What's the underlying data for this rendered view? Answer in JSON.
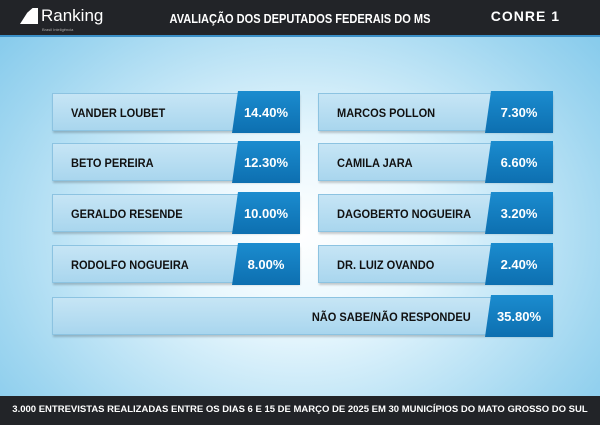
{
  "header": {
    "logo": "Ranking",
    "logo_sub": "Brasil Inteligência",
    "title": "AVALIAÇÃO DOS DEPUTADOS FEDERAIS DO MS",
    "partner": "CONRE 1"
  },
  "left": [
    {
      "name": "VANDER LOUBET",
      "value": "14.40%"
    },
    {
      "name": "BETO PEREIRA",
      "value": "12.30%"
    },
    {
      "name": "GERALDO RESENDE",
      "value": "10.00%"
    },
    {
      "name": "RODOLFO NOGUEIRA",
      "value": "8.00%"
    }
  ],
  "right": [
    {
      "name": "MARCOS POLLON",
      "value": "7.30%"
    },
    {
      "name": "CAMILA JARA",
      "value": "6.60%"
    },
    {
      "name": "DAGOBERTO NOGUEIRA",
      "value": "3.20%"
    },
    {
      "name": "DR. LUIZ OVANDO",
      "value": "2.40%"
    }
  ],
  "undecided": {
    "name": "NÃO SABE/NÃO RESPONDEU",
    "value": "35.80%"
  },
  "footer": "3.000 ENTREVISTAS REALIZADAS ENTRE OS DIAS 6 E 15 DE MARÇO DE 2025 EM 30 MUNICÍPIOS DO MATO GROSSO DO SUL",
  "colors": {
    "accent": "#1b8ccf",
    "header_bg": "#222428"
  }
}
